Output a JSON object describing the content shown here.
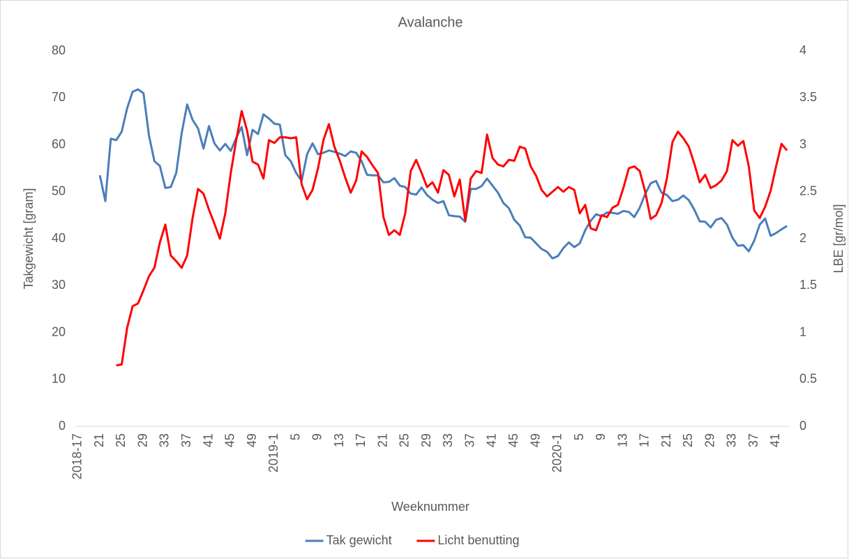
{
  "chart_data": {
    "type": "line",
    "title": "Avalanche",
    "x_label": "Weeknummer",
    "y_label": "Takgewicht [gram]",
    "y2_label": "LBE [gr/mol]",
    "categories": [
      "2018-17",
      null,
      null,
      null,
      "21",
      null,
      null,
      null,
      "25",
      null,
      null,
      null,
      "29",
      null,
      null,
      null,
      "33",
      null,
      null,
      null,
      "37",
      null,
      null,
      null,
      "41",
      null,
      null,
      null,
      "45",
      null,
      null,
      null,
      "49",
      null,
      null,
      null,
      "2019-1",
      null,
      null,
      null,
      "5",
      null,
      null,
      null,
      "9",
      null,
      null,
      null,
      "13",
      null,
      null,
      null,
      "17",
      null,
      null,
      null,
      "21",
      null,
      null,
      null,
      "25",
      null,
      null,
      null,
      "29",
      null,
      null,
      null,
      "33",
      null,
      null,
      null,
      "37",
      null,
      null,
      null,
      "41",
      null,
      null,
      null,
      "45",
      null,
      null,
      null,
      "49",
      null,
      null,
      null,
      "2020-1",
      null,
      null,
      null,
      "5",
      null,
      null,
      null,
      "9",
      null,
      null,
      null,
      "13",
      null,
      null,
      null,
      "17",
      null,
      null,
      null,
      "21",
      null,
      null,
      null,
      "25",
      null,
      null,
      null,
      "29",
      null,
      null,
      null,
      "33",
      null,
      null,
      null,
      "37",
      null,
      null,
      null,
      "41",
      null,
      null
    ],
    "series": [
      {
        "name": "Tak gewicht",
        "color": "#4a7ebb",
        "axis": "y",
        "values": [
          null,
          null,
          null,
          null,
          53.5,
          48,
          61.3,
          61,
          62.8,
          67.8,
          71.3,
          71.8,
          71,
          62,
          56.5,
          55.5,
          50.8,
          51,
          54,
          62.5,
          68.6,
          65.3,
          63.5,
          59.2,
          64,
          60.3,
          58.8,
          60.2,
          58.7,
          61.5,
          63.8,
          57.8,
          63.2,
          62.3,
          66.5,
          65.6,
          64.5,
          64.3,
          57.8,
          56.5,
          54,
          52.3,
          58,
          60.3,
          58,
          58.3,
          58.8,
          58.5,
          58.1,
          57.6,
          58.6,
          58.3,
          56.5,
          53.6,
          53.5,
          53.5,
          52,
          52.1,
          52.9,
          51.3,
          51,
          49.6,
          49.4,
          50.9,
          49.3,
          48.3,
          47.6,
          48,
          45,
          44.8,
          44.7,
          43.6,
          50.6,
          50.6,
          51.2,
          52.8,
          51.3,
          49.8,
          47.6,
          46.5,
          44,
          42.8,
          40.3,
          40.2,
          39,
          37.8,
          37.2,
          35.8,
          36.3,
          38,
          39.2,
          38.2,
          39,
          41.8,
          43.8,
          45.2,
          44.8,
          45.6,
          45.5,
          45.3,
          45.9,
          45.7,
          44.6,
          46.6,
          49.5,
          51.8,
          52.3,
          49.8,
          49.3,
          48,
          48.3,
          49.2,
          48.2,
          46.2,
          43.7,
          43.6,
          42.4,
          44,
          44.4,
          43,
          40.2,
          38.5,
          38.6,
          37.3,
          39.6,
          43,
          44.3,
          40.6,
          41.2,
          42,
          42.7
        ]
      },
      {
        "name": "Licht benutting",
        "color": "#ff0000",
        "axis": "y2",
        "values": [
          null,
          null,
          null,
          null,
          null,
          null,
          null,
          0.65,
          0.66,
          1.05,
          1.28,
          1.31,
          1.45,
          1.6,
          1.69,
          1.96,
          2.15,
          1.82,
          1.76,
          1.69,
          1.82,
          2.22,
          2.53,
          2.48,
          2.31,
          2.16,
          2.0,
          2.27,
          2.7,
          3.05,
          3.36,
          3.15,
          2.82,
          2.79,
          2.64,
          3.05,
          3.02,
          3.08,
          3.08,
          3.07,
          3.08,
          2.58,
          2.42,
          2.52,
          2.75,
          3.05,
          3.22,
          2.98,
          2.83,
          2.65,
          2.49,
          2.62,
          2.93,
          2.87,
          2.78,
          2.7,
          2.23,
          2.04,
          2.09,
          2.04,
          2.27,
          2.72,
          2.84,
          2.7,
          2.55,
          2.6,
          2.49,
          2.73,
          2.68,
          2.45,
          2.63,
          2.19,
          2.64,
          2.72,
          2.7,
          3.11,
          2.86,
          2.79,
          2.77,
          2.84,
          2.83,
          2.98,
          2.96,
          2.77,
          2.67,
          2.52,
          2.45,
          2.5,
          2.55,
          2.5,
          2.55,
          2.52,
          2.27,
          2.36,
          2.11,
          2.09,
          2.25,
          2.23,
          2.33,
          2.36,
          2.54,
          2.75,
          2.77,
          2.72,
          2.5,
          2.21,
          2.25,
          2.38,
          2.65,
          3.03,
          3.14,
          3.07,
          2.98,
          2.8,
          2.6,
          2.68,
          2.54,
          2.57,
          2.62,
          2.72,
          3.05,
          2.99,
          3.04,
          2.77,
          2.3,
          2.22,
          2.34,
          2.51,
          2.77,
          3.01,
          2.94
        ]
      }
    ],
    "ylim": [
      0,
      80
    ],
    "yticks": [
      0,
      10,
      20,
      30,
      40,
      50,
      60,
      70,
      80
    ],
    "y2lim": [
      0,
      4
    ],
    "y2ticks": [
      0,
      0.5,
      1,
      1.5,
      2,
      2.5,
      3,
      3.5,
      4
    ],
    "grid": false,
    "legend": "bottom"
  }
}
